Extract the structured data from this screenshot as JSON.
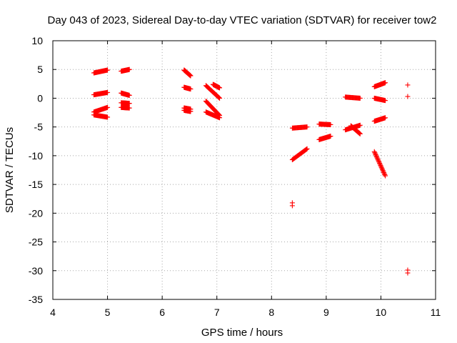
{
  "chart_data": {
    "type": "scatter",
    "title": "Day 043 of 2023, Sidereal Day-to-day VTEC variation (SDTVAR) for receiver tow2",
    "xlabel": "GPS time / hours",
    "ylabel": "SDTVAR / TECUs",
    "xlim": [
      4,
      11
    ],
    "ylim": [
      -35,
      10
    ],
    "xticks": [
      "4",
      "5",
      "6",
      "7",
      "8",
      "9",
      "10",
      "11"
    ],
    "yticks": [
      "10",
      "5",
      "0",
      "-5",
      "-10",
      "-15",
      "-20",
      "-25",
      "-30",
      "-35"
    ],
    "grid": true,
    "marker": "plus",
    "marker_color": "#ff0000",
    "segments": [
      {
        "x": [
          4.75,
          5.0
        ],
        "y": [
          4.4,
          4.9
        ]
      },
      {
        "x": [
          4.75,
          5.0
        ],
        "y": [
          0.6,
          1.0
        ]
      },
      {
        "x": [
          4.75,
          5.0
        ],
        "y": [
          -2.4,
          -1.6
        ]
      },
      {
        "x": [
          4.75,
          5.0
        ],
        "y": [
          -2.9,
          -3.3
        ]
      },
      {
        "x": [
          5.25,
          5.4
        ],
        "y": [
          4.7,
          5.0
        ]
      },
      {
        "x": [
          5.25,
          5.4
        ],
        "y": [
          0.9,
          0.5
        ]
      },
      {
        "x": [
          5.25,
          5.4
        ],
        "y": [
          -0.8,
          -0.9
        ]
      },
      {
        "x": [
          5.25,
          5.4
        ],
        "y": [
          -1.6,
          -1.7
        ]
      },
      {
        "x": [
          6.4,
          6.52
        ],
        "y": [
          4.9,
          3.9
        ]
      },
      {
        "x": [
          6.4,
          6.52
        ],
        "y": [
          1.9,
          1.6
        ]
      },
      {
        "x": [
          6.4,
          6.52
        ],
        "y": [
          -1.7,
          -1.9
        ]
      },
      {
        "x": [
          6.4,
          6.52
        ],
        "y": [
          -2.1,
          -2.3
        ]
      },
      {
        "x": [
          6.8,
          7.05
        ],
        "y": [
          2.2,
          0.0
        ]
      },
      {
        "x": [
          6.93,
          7.05
        ],
        "y": [
          2.4,
          1.8
        ]
      },
      {
        "x": [
          6.8,
          7.05
        ],
        "y": [
          -0.5,
          -3.0
        ]
      },
      {
        "x": [
          6.8,
          7.05
        ],
        "y": [
          -2.4,
          -3.4
        ]
      },
      {
        "x": [
          8.38,
          8.65
        ],
        "y": [
          -5.2,
          -5.0
        ]
      },
      {
        "x": [
          8.38,
          8.65
        ],
        "y": [
          -10.7,
          -8.8
        ]
      },
      {
        "x": [
          8.87,
          9.08
        ],
        "y": [
          -4.5,
          -4.6
        ]
      },
      {
        "x": [
          8.87,
          9.08
        ],
        "y": [
          -7.2,
          -6.6
        ]
      },
      {
        "x": [
          9.35,
          9.62
        ],
        "y": [
          0.2,
          0.0
        ]
      },
      {
        "x": [
          9.35,
          9.62
        ],
        "y": [
          -5.5,
          -4.7
        ]
      },
      {
        "x": [
          9.45,
          9.62
        ],
        "y": [
          -4.8,
          -6.2
        ]
      },
      {
        "x": [
          9.88,
          10.08
        ],
        "y": [
          2.0,
          2.7
        ]
      },
      {
        "x": [
          9.88,
          10.08
        ],
        "y": [
          0.0,
          -0.4
        ]
      },
      {
        "x": [
          9.88,
          10.08
        ],
        "y": [
          -4.0,
          -3.4
        ]
      },
      {
        "x": [
          9.88,
          10.08
        ],
        "y": [
          -9.3,
          -13.5
        ]
      }
    ],
    "points": [
      {
        "x": 8.38,
        "y": -18.2
      },
      {
        "x": 8.38,
        "y": -18.7
      },
      {
        "x": 10.49,
        "y": 2.3
      },
      {
        "x": 10.49,
        "y": 0.3
      },
      {
        "x": 10.49,
        "y": -29.9
      },
      {
        "x": 10.49,
        "y": -30.4
      }
    ]
  }
}
